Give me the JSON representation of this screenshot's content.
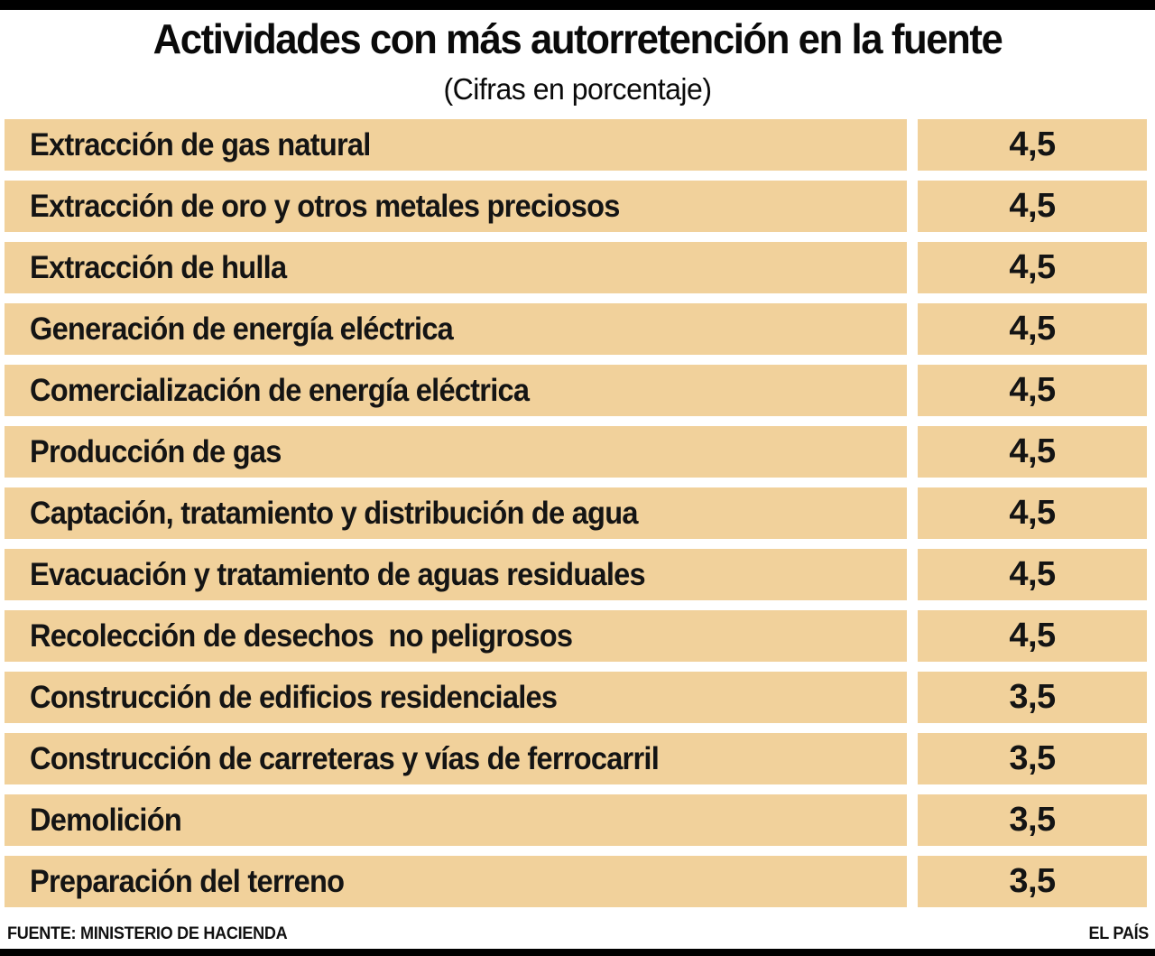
{
  "header": {
    "title": "Actividades con más autorretención en la fuente",
    "subtitle": "(Cifras en porcentaje)"
  },
  "rows": [
    {
      "label": "Extracción de gas natural",
      "value": "4,5"
    },
    {
      "label": "Extracción de oro y otros metales preciosos",
      "value": "4,5"
    },
    {
      "label": "Extracción de hulla",
      "value": "4,5"
    },
    {
      "label": "Generación de energía eléctrica",
      "value": "4,5"
    },
    {
      "label": "Comercialización de energía eléctrica",
      "value": "4,5"
    },
    {
      "label": "Producción de gas",
      "value": "4,5"
    },
    {
      "label": "Captación, tratamiento y distribución de agua",
      "value": "4,5"
    },
    {
      "label": "Evacuación y tratamiento de aguas residuales",
      "value": "4,5"
    },
    {
      "label": "Recolección de desechos  no peligrosos",
      "value": "4,5"
    },
    {
      "label": "Construcción de edificios residenciales",
      "value": "3,5"
    },
    {
      "label": "Construcción de carreteras y vías de ferrocarril",
      "value": "3,5"
    },
    {
      "label": "Demolición",
      "value": "3,5"
    },
    {
      "label": "Preparación del terreno",
      "value": "3,5"
    }
  ],
  "footer": {
    "source": "FUENTE: MINISTERIO DE HACIENDA",
    "credit": "EL PAÍS"
  },
  "colors": {
    "row_background": "#f1d19b",
    "rule": "#000000",
    "text": "#111111"
  },
  "chart_data": {
    "type": "table",
    "title": "Actividades con más autorretención en la fuente",
    "subtitle": "(Cifras en porcentaje)",
    "unit": "percent",
    "categories": [
      "Extracción de gas natural",
      "Extracción de oro y otros metales preciosos",
      "Extracción de hulla",
      "Generación de energía eléctrica",
      "Comercialización de energía eléctrica",
      "Producción de gas",
      "Captación, tratamiento y distribución de agua",
      "Evacuación y tratamiento de aguas residuales",
      "Recolección de desechos  no peligrosos",
      "Construcción de edificios residenciales",
      "Construcción de carreteras y vías de ferrocarril",
      "Demolición",
      "Preparación del terreno"
    ],
    "values": [
      4.5,
      4.5,
      4.5,
      4.5,
      4.5,
      4.5,
      4.5,
      4.5,
      4.5,
      3.5,
      3.5,
      3.5,
      3.5
    ],
    "source": "FUENTE: MINISTERIO DE HACIENDA",
    "credit": "EL PAÍS",
    "legend": "none",
    "grid": "off"
  }
}
